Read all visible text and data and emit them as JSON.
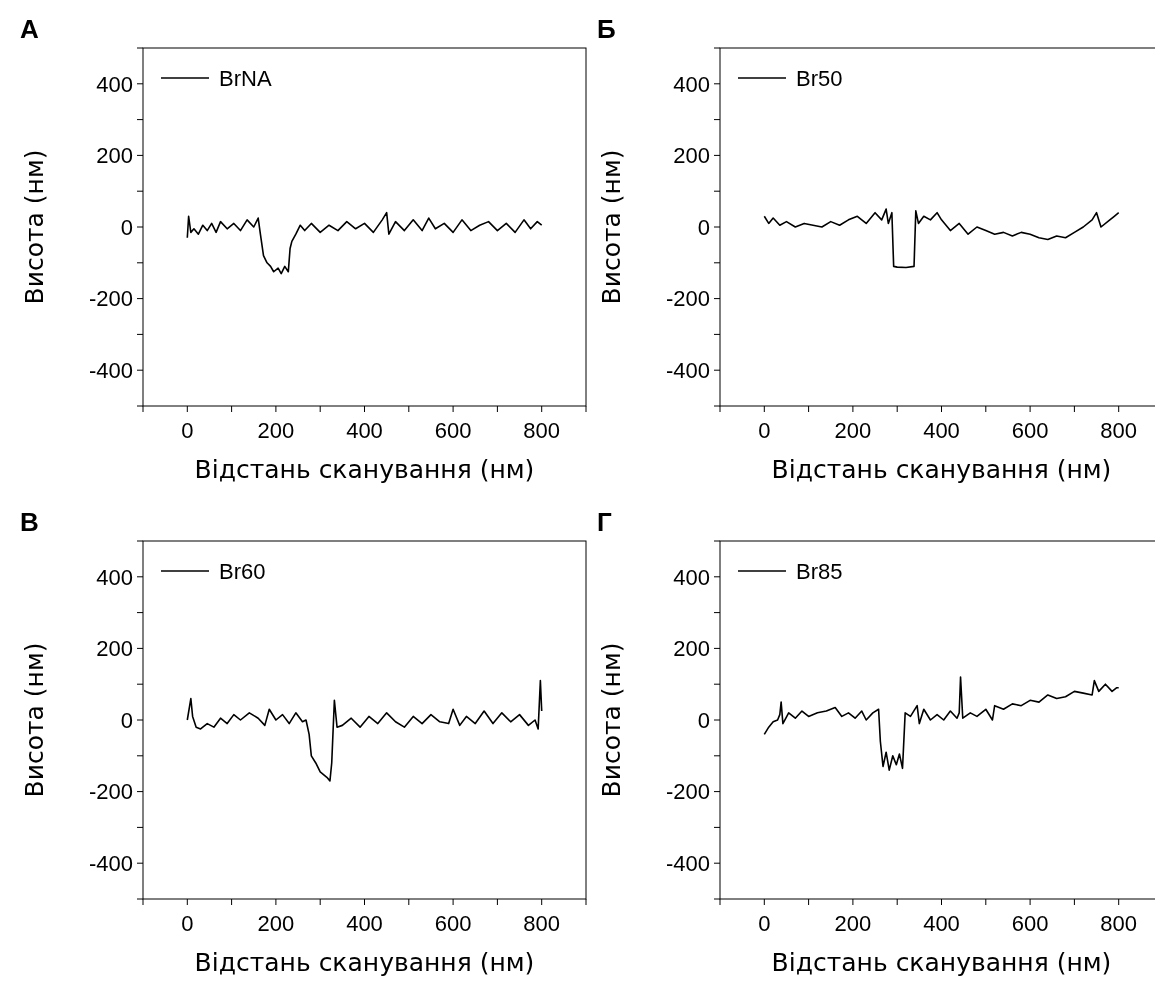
{
  "chart_data": [
    {
      "type": "line",
      "title": "А",
      "xlabel": "Відстань сканування (нм)",
      "ylabel": "Висота (нм)",
      "legend": "top left",
      "xlim": [
        -100,
        900
      ],
      "ylim": [
        -500,
        500
      ],
      "xticks": [
        {
          "value": -100,
          "label": null
        },
        0,
        {
          "value": 100,
          "label": null
        },
        200,
        {
          "value": 300,
          "label": null
        },
        400,
        {
          "value": 500,
          "label": null
        },
        600,
        {
          "value": 700,
          "label": null
        },
        800,
        {
          "value": 900,
          "label": null
        }
      ],
      "yticks": [
        {
          "value": -500,
          "label": null
        },
        -400,
        {
          "value": -300,
          "label": null
        },
        -200,
        {
          "value": -100,
          "label": null
        },
        0,
        {
          "value": 100,
          "label": null
        },
        200,
        {
          "value": 300,
          "label": null
        },
        400,
        {
          "value": 500,
          "label": null
        }
      ],
      "series": [
        {
          "name": "BrNA",
          "color": "#000000",
          "x": [
            0,
            3,
            8,
            15,
            25,
            35,
            45,
            55,
            65,
            75,
            90,
            105,
            120,
            135,
            150,
            160,
            165,
            172,
            180,
            188,
            195,
            205,
            212,
            220,
            228,
            232,
            236,
            245,
            255,
            265,
            280,
            300,
            320,
            340,
            360,
            380,
            400,
            420,
            440,
            450,
            455,
            470,
            490,
            510,
            530,
            545,
            560,
            580,
            600,
            620,
            640,
            660,
            680,
            700,
            720,
            740,
            760,
            775,
            790,
            800
          ],
          "values": [
            -30,
            30,
            -15,
            -5,
            -20,
            5,
            -10,
            10,
            -15,
            15,
            -5,
            10,
            -10,
            20,
            0,
            25,
            -20,
            -80,
            -100,
            -110,
            -125,
            -115,
            -130,
            -110,
            -125,
            -60,
            -40,
            -20,
            5,
            -10,
            10,
            -15,
            5,
            -10,
            15,
            -5,
            10,
            -15,
            20,
            40,
            -20,
            15,
            -10,
            20,
            -10,
            25,
            -5,
            10,
            -15,
            20,
            -10,
            5,
            15,
            -10,
            10,
            -15,
            20,
            -5,
            15,
            5
          ]
        }
      ]
    },
    {
      "type": "line",
      "title": "Б",
      "xlabel": "Відстань сканування (нм)",
      "ylabel": "Висота (нм)",
      "legend": "top left",
      "xlim": [
        -100,
        900
      ],
      "ylim": [
        -500,
        500
      ],
      "xticks": [
        {
          "value": -100,
          "label": null
        },
        0,
        {
          "value": 100,
          "label": null
        },
        200,
        {
          "value": 300,
          "label": null
        },
        400,
        {
          "value": 500,
          "label": null
        },
        600,
        {
          "value": 700,
          "label": null
        },
        800,
        {
          "value": 900,
          "label": null
        }
      ],
      "yticks": [
        {
          "value": -500,
          "label": null
        },
        -400,
        {
          "value": -300,
          "label": null
        },
        -200,
        {
          "value": -100,
          "label": null
        },
        0,
        {
          "value": 100,
          "label": null
        },
        200,
        {
          "value": 300,
          "label": null
        },
        400,
        {
          "value": 500,
          "label": null
        }
      ],
      "series": [
        {
          "name": "Br50",
          "color": "#000000",
          "x": [
            0,
            10,
            20,
            35,
            50,
            70,
            90,
            110,
            130,
            150,
            170,
            190,
            210,
            230,
            250,
            265,
            275,
            280,
            288,
            292,
            300,
            320,
            338,
            342,
            348,
            360,
            375,
            390,
            400,
            420,
            440,
            460,
            480,
            500,
            520,
            540,
            560,
            580,
            600,
            620,
            640,
            660,
            680,
            700,
            720,
            740,
            750,
            760,
            780,
            790,
            800
          ],
          "values": [
            30,
            10,
            25,
            5,
            15,
            0,
            10,
            5,
            0,
            15,
            5,
            20,
            30,
            10,
            40,
            20,
            50,
            10,
            40,
            -110,
            -112,
            -113,
            -110,
            45,
            10,
            30,
            20,
            40,
            20,
            -10,
            10,
            -20,
            0,
            -10,
            -20,
            -15,
            -25,
            -15,
            -20,
            -30,
            -35,
            -25,
            -30,
            -15,
            0,
            20,
            40,
            0,
            20,
            30,
            40
          ]
        }
      ]
    },
    {
      "type": "line",
      "title": "В",
      "xlabel": "Відстань сканування (нм)",
      "ylabel": "Висота (нм)",
      "legend": "top left",
      "xlim": [
        -100,
        900
      ],
      "ylim": [
        -500,
        500
      ],
      "xticks": [
        {
          "value": -100,
          "label": null
        },
        0,
        {
          "value": 100,
          "label": null
        },
        200,
        {
          "value": 300,
          "label": null
        },
        400,
        {
          "value": 500,
          "label": null
        },
        600,
        {
          "value": 700,
          "label": null
        },
        800,
        {
          "value": 900,
          "label": null
        }
      ],
      "yticks": [
        {
          "value": -500,
          "label": null
        },
        -400,
        {
          "value": -300,
          "label": null
        },
        -200,
        {
          "value": -100,
          "label": null
        },
        0,
        {
          "value": 100,
          "label": null
        },
        200,
        {
          "value": 300,
          "label": null
        },
        400,
        {
          "value": 500,
          "label": null
        }
      ],
      "series": [
        {
          "name": "Br60",
          "color": "#000000",
          "x": [
            0,
            8,
            12,
            20,
            30,
            45,
            60,
            75,
            90,
            105,
            120,
            140,
            160,
            175,
            185,
            200,
            215,
            230,
            245,
            260,
            268,
            275,
            280,
            290,
            300,
            315,
            322,
            326,
            332,
            338,
            350,
            370,
            390,
            410,
            430,
            450,
            470,
            490,
            510,
            530,
            550,
            570,
            590,
            600,
            615,
            630,
            650,
            670,
            690,
            710,
            730,
            750,
            770,
            785,
            792,
            797,
            800
          ],
          "values": [
            0,
            60,
            10,
            -20,
            -25,
            -10,
            -20,
            5,
            -10,
            15,
            0,
            20,
            5,
            -15,
            30,
            0,
            15,
            -10,
            20,
            -5,
            0,
            -40,
            -100,
            -120,
            -145,
            -160,
            -170,
            -120,
            55,
            -20,
            -15,
            5,
            -20,
            10,
            -10,
            20,
            -5,
            -20,
            10,
            -10,
            15,
            -5,
            -10,
            30,
            -15,
            10,
            -10,
            25,
            -10,
            20,
            -5,
            15,
            -15,
            0,
            -25,
            110,
            25
          ]
        }
      ]
    },
    {
      "type": "line",
      "title": "Г",
      "xlabel": "Відстань сканування (нм)",
      "ylabel": "Висота (нм)",
      "legend": "top left",
      "xlim": [
        -100,
        900
      ],
      "ylim": [
        -500,
        500
      ],
      "xticks": [
        {
          "value": -100,
          "label": null
        },
        0,
        {
          "value": 100,
          "label": null
        },
        200,
        {
          "value": 300,
          "label": null
        },
        400,
        {
          "value": 500,
          "label": null
        },
        600,
        {
          "value": 700,
          "label": null
        },
        800,
        {
          "value": 900,
          "label": null
        }
      ],
      "yticks": [
        {
          "value": -500,
          "label": null
        },
        -400,
        {
          "value": -300,
          "label": null
        },
        -200,
        {
          "value": -100,
          "label": null
        },
        0,
        {
          "value": 100,
          "label": null
        },
        200,
        {
          "value": 300,
          "label": null
        },
        400,
        {
          "value": 500,
          "label": null
        }
      ],
      "series": [
        {
          "name": "Br85",
          "color": "#000000",
          "x": [
            0,
            10,
            20,
            30,
            35,
            38,
            42,
            55,
            70,
            85,
            100,
            120,
            140,
            160,
            175,
            190,
            205,
            220,
            230,
            245,
            258,
            262,
            268,
            275,
            282,
            290,
            298,
            305,
            312,
            318,
            330,
            345,
            350,
            360,
            375,
            390,
            405,
            420,
            435,
            440,
            443,
            448,
            465,
            480,
            500,
            515,
            520,
            540,
            560,
            580,
            600,
            620,
            640,
            660,
            680,
            700,
            720,
            740,
            745,
            755,
            770,
            785,
            795,
            800
          ],
          "values": [
            -40,
            -20,
            -5,
            0,
            15,
            50,
            -10,
            20,
            5,
            25,
            10,
            20,
            25,
            35,
            10,
            20,
            5,
            25,
            0,
            20,
            30,
            -60,
            -130,
            -90,
            -140,
            -100,
            -125,
            -95,
            -135,
            20,
            10,
            40,
            -10,
            30,
            0,
            15,
            0,
            25,
            5,
            20,
            120,
            5,
            20,
            10,
            30,
            0,
            40,
            30,
            45,
            40,
            55,
            50,
            70,
            60,
            65,
            80,
            75,
            70,
            110,
            80,
            100,
            80,
            90,
            90
          ]
        }
      ]
    }
  ]
}
